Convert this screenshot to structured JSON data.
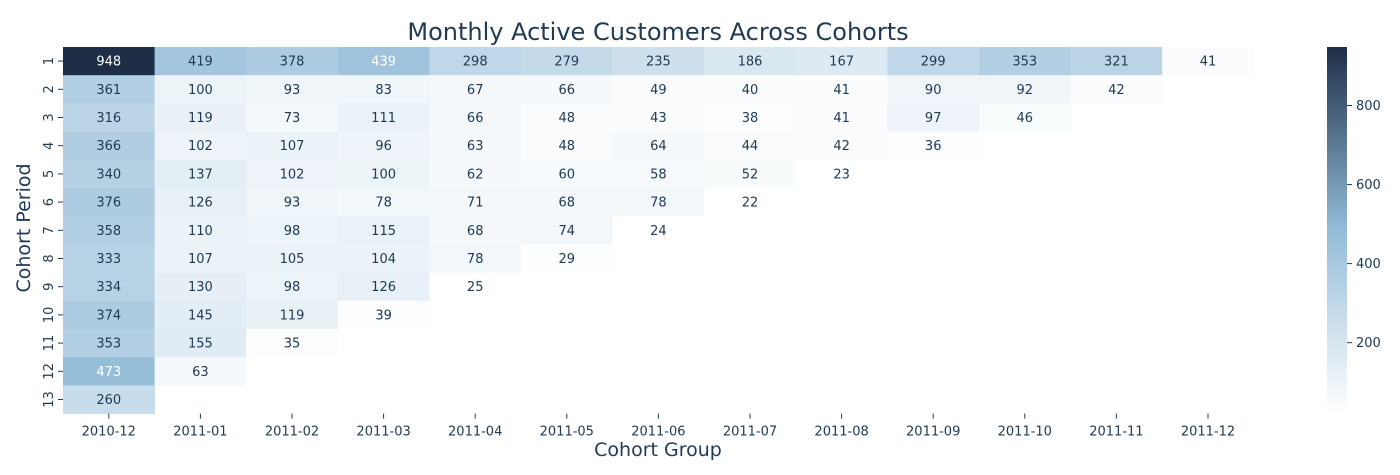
{
  "chart_data": {
    "type": "heatmap",
    "title": "Monthly Active Customers Across Cohorts",
    "xlabel": "Cohort Group",
    "ylabel": "Cohort Period",
    "x_categories": [
      "2010-12",
      "2011-01",
      "2011-02",
      "2011-03",
      "2011-04",
      "2011-05",
      "2011-06",
      "2011-07",
      "2011-08",
      "2011-09",
      "2011-10",
      "2011-11",
      "2011-12"
    ],
    "y_categories": [
      "1",
      "2",
      "3",
      "4",
      "5",
      "6",
      "7",
      "8",
      "9",
      "10",
      "11",
      "12",
      "13"
    ],
    "values": [
      [
        948,
        419,
        378,
        439,
        298,
        279,
        235,
        186,
        167,
        299,
        353,
        321,
        41
      ],
      [
        361,
        100,
        93,
        83,
        67,
        66,
        49,
        40,
        41,
        90,
        92,
        42,
        null
      ],
      [
        316,
        119,
        73,
        111,
        66,
        48,
        43,
        38,
        41,
        97,
        46,
        null,
        null
      ],
      [
        366,
        102,
        107,
        96,
        63,
        48,
        64,
        44,
        42,
        36,
        null,
        null,
        null
      ],
      [
        340,
        137,
        102,
        100,
        62,
        60,
        58,
        52,
        23,
        null,
        null,
        null,
        null
      ],
      [
        376,
        126,
        93,
        78,
        71,
        68,
        78,
        22,
        null,
        null,
        null,
        null,
        null
      ],
      [
        358,
        110,
        98,
        115,
        68,
        74,
        24,
        null,
        null,
        null,
        null,
        null,
        null
      ],
      [
        333,
        107,
        105,
        104,
        78,
        29,
        null,
        null,
        null,
        null,
        null,
        null,
        null
      ],
      [
        334,
        130,
        98,
        126,
        25,
        null,
        null,
        null,
        null,
        null,
        null,
        null,
        null
      ],
      [
        374,
        145,
        119,
        39,
        null,
        null,
        null,
        null,
        null,
        null,
        null,
        null,
        null
      ],
      [
        353,
        155,
        35,
        null,
        null,
        null,
        null,
        null,
        null,
        null,
        null,
        null,
        null
      ],
      [
        473,
        63,
        null,
        null,
        null,
        null,
        null,
        null,
        null,
        null,
        null,
        null,
        null
      ],
      [
        260,
        null,
        null,
        null,
        null,
        null,
        null,
        null,
        null,
        null,
        null,
        null,
        null
      ]
    ],
    "colorbar": {
      "range": [
        22,
        948
      ],
      "ticks": [
        200,
        400,
        600,
        800
      ],
      "colors": [
        "#ffffff",
        "#94bcd8",
        "#1e2e46"
      ]
    },
    "grid": false,
    "legend": "colorbar-right"
  }
}
